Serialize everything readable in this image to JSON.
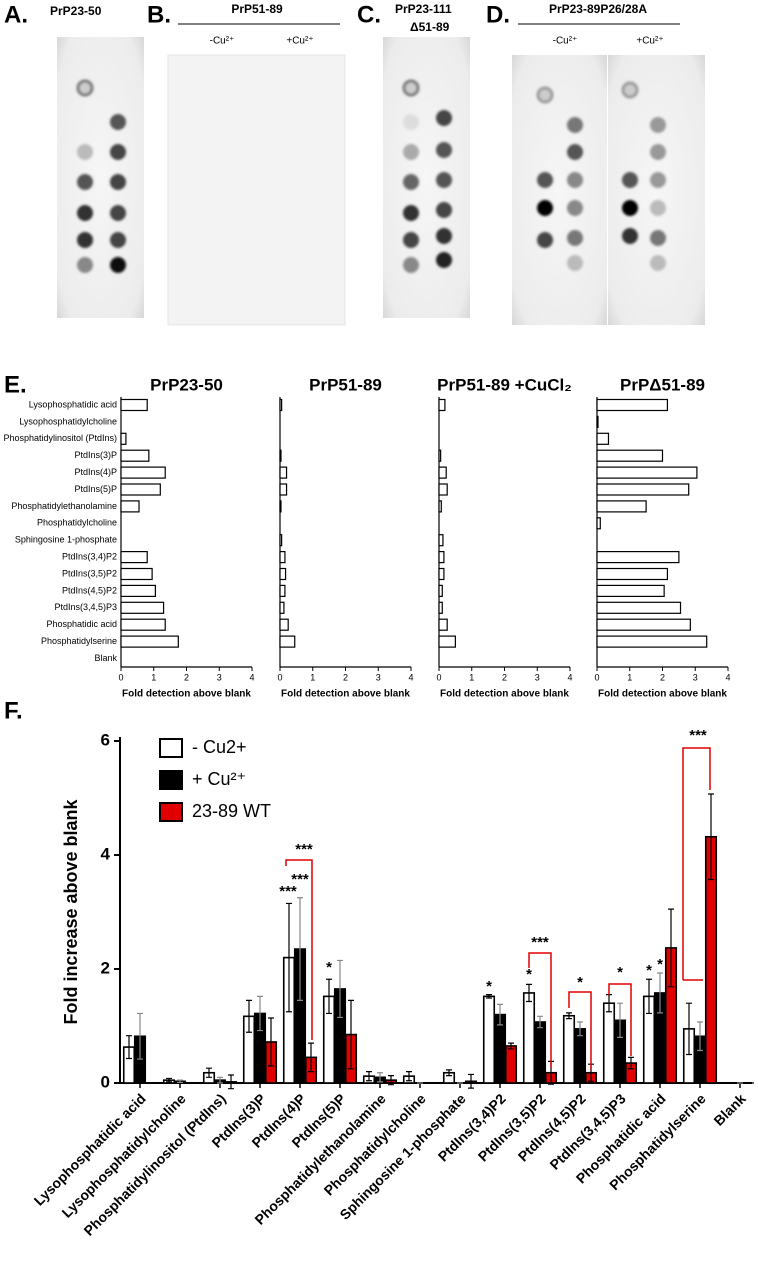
{
  "panels": {
    "A": {
      "label": "A.",
      "title": "PrP23-50"
    },
    "B": {
      "label": "B.",
      "title": "PrP51-89",
      "conditions": [
        "-Cu²⁺",
        "+Cu²⁺"
      ]
    },
    "C": {
      "label": "C.",
      "title": [
        "PrP23-111",
        "Δ51-89"
      ]
    },
    "D": {
      "label": "D.",
      "title": "PrP23-89P26/28A",
      "conditions": [
        "-Cu²⁺",
        "+Cu²⁺"
      ]
    },
    "E": {
      "label": "E."
    },
    "F": {
      "label": "F."
    }
  },
  "chart_data": [
    {
      "type": "hbar",
      "title": "PrP23-50",
      "categories": [
        "Lysophosphatidic acid",
        "Lysophosphatidylcholine",
        "Phosphatidylinositol (PtdIns)",
        "PtdIns(3)P",
        "PtdIns(4)P",
        "PtdIns(5)P",
        "Phosphatidylethanolamine",
        "Phosphatidylcholine",
        "Sphingosine 1-phosphate",
        "PtdIns(3,4)P2",
        "PtdIns(3,5)P2",
        "PtdIns(4,5)P2",
        "PtdIns(3,4,5)P3",
        "Phosphatidic acid",
        "Phosphatidylserine",
        "Blank"
      ],
      "values": [
        0.8,
        0,
        0.15,
        0.85,
        1.35,
        1.2,
        0.55,
        0,
        0,
        0.8,
        0.95,
        1.05,
        1.3,
        1.35,
        1.75,
        0
      ],
      "xlim": [
        0,
        4
      ],
      "xticks": [
        0,
        1,
        2,
        3,
        4
      ],
      "xlabel": "Fold detection above blank",
      "color": "#ffffff"
    },
    {
      "type": "hbar",
      "title": "PrP51-89",
      "values": [
        0.05,
        0,
        0,
        0.03,
        0.2,
        0.2,
        0.03,
        0,
        0.05,
        0.15,
        0.17,
        0.15,
        0.12,
        0.25,
        0.45,
        0
      ],
      "xlim": [
        0,
        4
      ],
      "xticks": [
        0,
        1,
        2,
        3,
        4
      ],
      "xlabel": "Fold detection above blank",
      "color": "#ffffff"
    },
    {
      "type": "hbar",
      "title": "PrP51-89 +CuCl₂",
      "values": [
        0.18,
        0,
        0,
        0.05,
        0.22,
        0.25,
        0.07,
        0,
        0.12,
        0.15,
        0.15,
        0.1,
        0.1,
        0.25,
        0.5,
        0
      ],
      "xlim": [
        0,
        4
      ],
      "xticks": [
        0,
        1,
        2,
        3,
        4
      ],
      "xlabel": "Fold detection above blank",
      "color": "#ffffff"
    },
    {
      "type": "hbar",
      "title": "PrPΔ51-89",
      "values": [
        2.15,
        0.03,
        0.35,
        2.0,
        3.05,
        2.8,
        1.5,
        0.1,
        0,
        2.5,
        2.15,
        2.05,
        2.55,
        2.85,
        3.35,
        0
      ],
      "xlim": [
        0,
        4
      ],
      "xticks": [
        0,
        1,
        2,
        3,
        4
      ],
      "xlabel": "Fold detection above blank",
      "color": "#ffffff"
    },
    {
      "type": "bar",
      "categories": [
        "Lysophosphatidic acid",
        "Lysophosphatidylcholine",
        "Phosphatidylinositol (PtdIns)",
        "PtdIns(3)P",
        "PtdIns(4)P",
        "PtdIns(5)P",
        "Phosphatidylethanolamine",
        "Phosphatidylcholine",
        "Sphingosine 1-phosphate",
        "PtdIns(3,4)P2",
        "PtdIns(3,5)P2",
        "PtdIns(4,5)P2",
        "PtdIns(3,4,5)P3",
        "Phosphatidic acid",
        "Phosphatidylserine",
        "Blank"
      ],
      "series": [
        {
          "name": "- Cu2+",
          "color": "#ffffff",
          "values": [
            0.63,
            0.05,
            0.18,
            1.17,
            2.2,
            1.52,
            0.12,
            0.12,
            0.18,
            1.52,
            1.58,
            1.18,
            1.4,
            1.52,
            0.95,
            0
          ],
          "errors": [
            0.2,
            0.03,
            0.08,
            0.28,
            0.95,
            0.3,
            0.08,
            0.08,
            0.05,
            0.03,
            0.15,
            0.05,
            0.15,
            0.3,
            0.45,
            0
          ]
        },
        {
          "name": "+ Cu²⁺",
          "color": "#000000",
          "values": [
            0.82,
            0.03,
            0.05,
            1.22,
            2.35,
            1.65,
            0.1,
            0,
            0,
            1.2,
            1.07,
            0.95,
            1.1,
            1.58,
            0.82,
            0
          ],
          "errors": [
            0.4,
            0.02,
            0.05,
            0.3,
            0.9,
            0.5,
            0.08,
            0,
            0,
            0.18,
            0.1,
            0.12,
            0.3,
            0.35,
            0.25,
            0
          ]
        },
        {
          "name": "23-89 WT",
          "color": "#e00000",
          "values": [
            0,
            0,
            0.02,
            0.72,
            0.45,
            0.85,
            0.05,
            0,
            0.03,
            0.65,
            0.18,
            0.18,
            0.35,
            2.37,
            4.32,
            0
          ],
          "errors": [
            0,
            0,
            0.12,
            0.42,
            0.25,
            0.6,
            0.08,
            0,
            0.12,
            0.05,
            0.2,
            0.15,
            0.1,
            0.68,
            0.75,
            0
          ]
        }
      ],
      "ylim": [
        0,
        6
      ],
      "yticks": [
        0,
        2,
        4,
        6
      ],
      "ylabel": "Fold increase above blank",
      "annotations": [
        {
          "text": "***",
          "color": "#000000"
        },
        {
          "text": "***",
          "color": "#000000"
        },
        {
          "text": "***",
          "color": "#e00000"
        },
        {
          "text": "*",
          "color": "#000000"
        },
        {
          "text": "*",
          "color": "#000000"
        },
        {
          "text": "*",
          "color": "#000000"
        },
        {
          "text": "***",
          "color": "#e00000"
        },
        {
          "text": "*",
          "color": "#e00000"
        },
        {
          "text": "*",
          "color": "#e00000"
        },
        {
          "text": "*",
          "color": "#000000"
        },
        {
          "text": "*",
          "color": "#000000"
        },
        {
          "text": "***",
          "color": "#e00000"
        }
      ]
    }
  ]
}
